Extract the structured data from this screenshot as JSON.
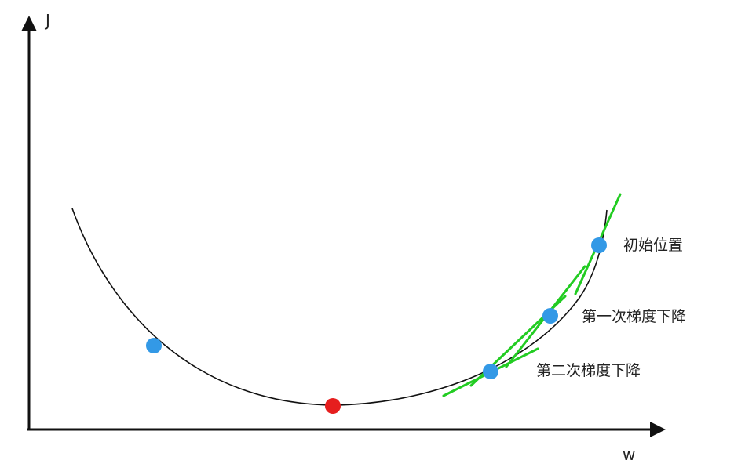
{
  "axes": {
    "y_label": "J",
    "x_label": "w"
  },
  "points": {
    "initial_label": "初始位置",
    "first_step_label": "第一次梯度下降",
    "second_step_label": "第二次梯度下降"
  },
  "colors": {
    "curve": "#111111",
    "tangent": "#22cc22",
    "point": "#3399e6",
    "minimum": "#e61e1e",
    "axis": "#111111"
  }
}
